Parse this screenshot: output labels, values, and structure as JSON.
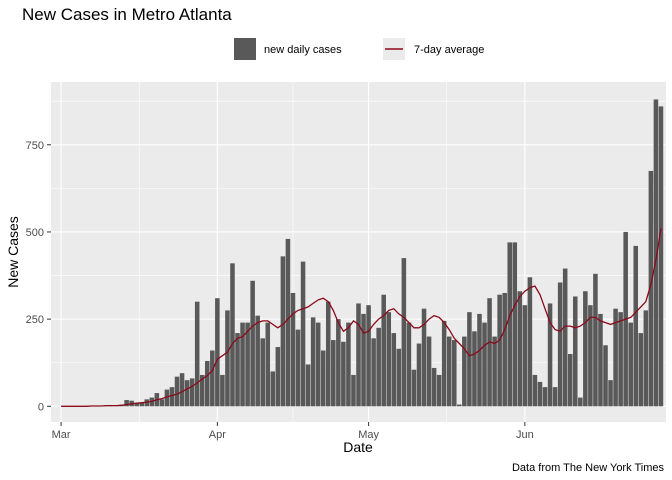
{
  "chart_data": {
    "type": "bar",
    "title": "New Cases in Metro Atlanta",
    "xlabel": "Date",
    "ylabel": "New Cases",
    "caption": "Data from The New York Times",
    "ylim": [
      -45,
      930
    ],
    "yticks": [
      0,
      250,
      500,
      750
    ],
    "xlim": [
      -2,
      120
    ],
    "x_ticks": [
      {
        "day": 0,
        "label": "Mar"
      },
      {
        "day": 31,
        "label": "Apr"
      },
      {
        "day": 61,
        "label": "May"
      },
      {
        "day": 92,
        "label": "Jun"
      }
    ],
    "grid": true,
    "legend_position": "top",
    "colors": {
      "bars": "#595959",
      "line": "#8b0a1a",
      "panel": "#ebebeb",
      "grid": "#ffffff"
    },
    "series": [
      {
        "name": "new daily cases",
        "type": "bar",
        "start_date": "2020-03-01",
        "values": [
          0,
          0,
          0,
          0,
          0,
          1,
          1,
          2,
          2,
          3,
          2,
          3,
          5,
          18,
          16,
          10,
          12,
          20,
          25,
          38,
          20,
          48,
          55,
          85,
          95,
          75,
          80,
          300,
          90,
          130,
          160,
          310,
          90,
          275,
          410,
          210,
          240,
          240,
          360,
          260,
          195,
          240,
          100,
          170,
          430,
          480,
          325,
          220,
          415,
          120,
          255,
          240,
          160,
          300,
          190,
          250,
          185,
          240,
          90,
          295,
          265,
          290,
          195,
          225,
          320,
          270,
          210,
          165,
          425,
          240,
          105,
          180,
          280,
          200,
          110,
          90,
          245,
          200,
          190,
          5,
          200,
          270,
          215,
          265,
          240,
          310,
          200,
          320,
          325,
          470,
          470,
          330,
          290,
          370,
          90,
          70,
          55,
          295,
          55,
          355,
          395,
          150,
          315,
          25,
          330,
          290,
          380,
          265,
          175,
          75,
          280,
          270,
          500,
          240,
          460,
          210,
          275,
          675,
          880,
          860
        ],
        "average": [
          0,
          0,
          0,
          0,
          0,
          0,
          1,
          1,
          1,
          2,
          2,
          2,
          3,
          5,
          7,
          9,
          10,
          12,
          14,
          19,
          22,
          27,
          31,
          35,
          42,
          50,
          57,
          67,
          78,
          88,
          102,
          135,
          145,
          155,
          180,
          195,
          200,
          215,
          230,
          240,
          245,
          245,
          235,
          225,
          235,
          250,
          265,
          275,
          280,
          285,
          295,
          305,
          310,
          300,
          275,
          240,
          215,
          225,
          245,
          235,
          210,
          215,
          235,
          250,
          260,
          275,
          280,
          265,
          255,
          240,
          225,
          225,
          235,
          250,
          260,
          255,
          240,
          220,
          195,
          180,
          165,
          145,
          150,
          160,
          175,
          185,
          180,
          190,
          220,
          260,
          290,
          315,
          330,
          340,
          345,
          320,
          280,
          240,
          220,
          215,
          230,
          230,
          225,
          230,
          240,
          255,
          255,
          245,
          240,
          235,
          240,
          245,
          250,
          255,
          270,
          285,
          300,
          350,
          420,
          510
        ]
      },
      {
        "name": "7-day average",
        "type": "line"
      }
    ]
  }
}
